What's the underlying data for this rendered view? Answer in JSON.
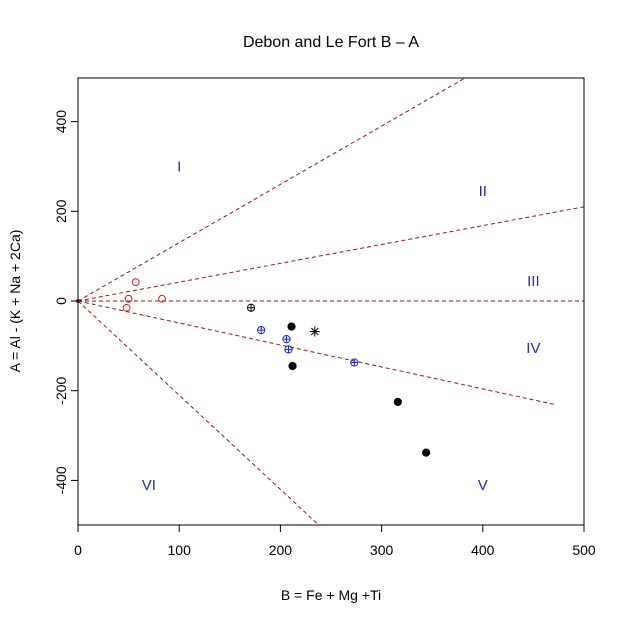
{
  "chart_data": {
    "type": "scatter",
    "title": "Debon and Le Fort B – A",
    "xlabel": "B = Fe + Mg +Ti",
    "ylabel": "A = Al - (K + Na + 2Ca)",
    "xlim": [
      0,
      500
    ],
    "ylim": [
      -500,
      500
    ],
    "x_ticks": [
      "0",
      "100",
      "200",
      "300",
      "400",
      "500"
    ],
    "y_ticks": [
      "-400",
      "-200",
      "0",
      "200",
      "400"
    ],
    "grid": false,
    "colors": {
      "boundary": "#8b1a1a",
      "region_label": "#2b2b9b",
      "series_open_red": "#cc2222",
      "series_blue": "#2222cc",
      "series_black": "#000000"
    },
    "boundaries": [
      {
        "id": "b1",
        "slope": 1.3,
        "x_end": 500
      },
      {
        "id": "b2",
        "slope": 0.42,
        "x_end": 500
      },
      {
        "id": "b3",
        "slope": 0,
        "x_end": 500
      },
      {
        "id": "b4",
        "slope": -0.49,
        "x_end": 470
      },
      {
        "id": "b5",
        "slope": -2.1,
        "x_end": 238
      }
    ],
    "regions": [
      {
        "label": "I",
        "x": 100,
        "y": 300
      },
      {
        "label": "II",
        "x": 400,
        "y": 245
      },
      {
        "label": "III",
        "x": 450,
        "y": 45
      },
      {
        "label": "IV",
        "x": 450,
        "y": -105
      },
      {
        "label": "V",
        "x": 400,
        "y": -410
      },
      {
        "label": "VI",
        "x": 70,
        "y": -410
      }
    ],
    "series": [
      {
        "marker": "open-circle",
        "color": "#cc2222",
        "points": [
          [
            57,
            42
          ],
          [
            50,
            5
          ],
          [
            83,
            5
          ],
          [
            48,
            -15
          ]
        ]
      },
      {
        "marker": "circle-plus",
        "color": "#2222cc",
        "points": [
          [
            181,
            -65
          ],
          [
            206,
            -85
          ],
          [
            208,
            -108
          ],
          [
            273,
            -137
          ]
        ]
      },
      {
        "marker": "circle-plus",
        "color": "#000000",
        "points": [
          [
            171,
            -15
          ]
        ]
      },
      {
        "marker": "filled-circle",
        "color": "#000000",
        "points": [
          [
            211,
            -57
          ],
          [
            212,
            -145
          ],
          [
            316,
            -225
          ],
          [
            344,
            -338
          ]
        ]
      },
      {
        "marker": "asterisk",
        "color": "#000000",
        "points": [
          [
            234,
            -68
          ]
        ]
      }
    ]
  }
}
